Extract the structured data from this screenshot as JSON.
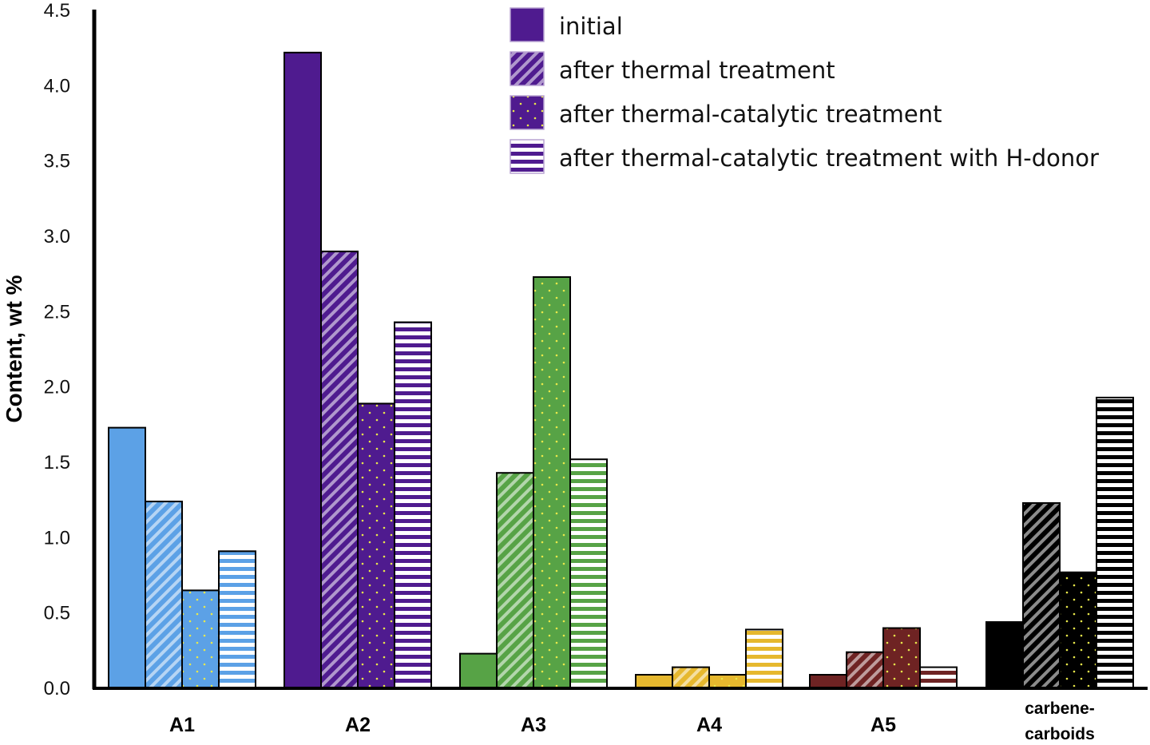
{
  "chart_data": {
    "type": "bar",
    "title": "",
    "xlabel": "",
    "ylabel": "Content, wt %",
    "ylim": [
      0,
      4.5
    ],
    "yticks": [
      "0.0",
      "0.5",
      "1.0",
      "1.5",
      "2.0",
      "2.5",
      "3.0",
      "3.5",
      "4.0",
      "4.5"
    ],
    "grid": false,
    "legend_position": "top-right",
    "categories": [
      {
        "label": "A1",
        "lines": [
          "A1"
        ],
        "color": "#5ca1e6"
      },
      {
        "label": "A2",
        "lines": [
          "A2"
        ],
        "color": "#4f1b8f"
      },
      {
        "label": "A3",
        "lines": [
          "A3"
        ],
        "color": "#57a346"
      },
      {
        "label": "A4",
        "lines": [
          "A4"
        ],
        "color": "#e6b82e"
      },
      {
        "label": "A5",
        "lines": [
          "A5"
        ],
        "color": "#6e2323"
      },
      {
        "label": "carbene-carboids",
        "lines": [
          "carbene-",
          "carboids"
        ],
        "color": "#000000"
      }
    ],
    "series": [
      {
        "name": "initial",
        "pattern": "solid",
        "values": [
          1.73,
          4.22,
          0.23,
          0.09,
          0.09,
          0.44
        ]
      },
      {
        "name": "after thermal treatment",
        "pattern": "diagonal",
        "values": [
          1.24,
          2.9,
          1.43,
          0.14,
          0.24,
          1.23
        ]
      },
      {
        "name": "after thermal-catalytic treatment",
        "pattern": "dots",
        "values": [
          0.65,
          1.89,
          2.73,
          0.09,
          0.4,
          0.77
        ]
      },
      {
        "name": "after thermal-catalytic treatment with H-donor",
        "pattern": "horizontal",
        "values": [
          0.91,
          2.43,
          1.52,
          0.39,
          0.14,
          1.93
        ]
      }
    ],
    "legend_color": "#4f1b8f"
  }
}
